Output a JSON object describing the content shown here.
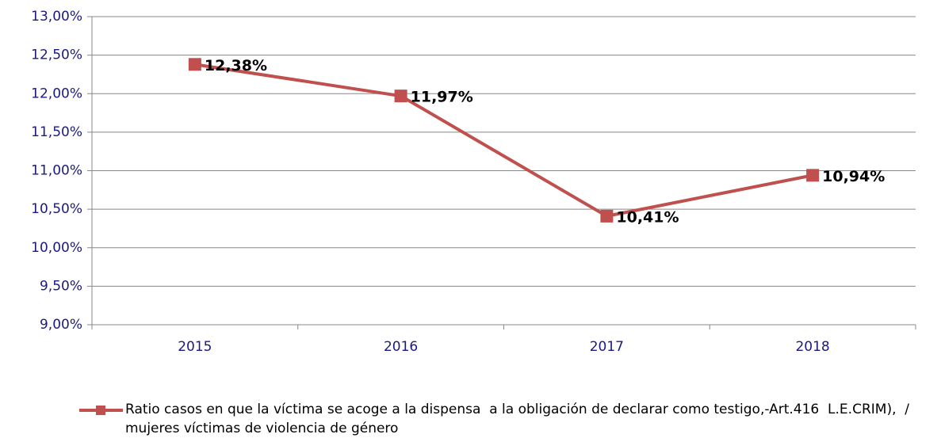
{
  "chart_data": {
    "type": "line",
    "categories": [
      "2015",
      "2016",
      "2017",
      "2018"
    ],
    "series": [
      {
        "name": "Ratio casos en que la víctima se acoge a la dispensa  a la obligación de declarar como testigo,-Art.416  L.E.CRIM),  / mujeres víctimas de violencia de género",
        "color": "#c0504d",
        "values": [
          12.38,
          11.97,
          10.41,
          10.94
        ],
        "value_labels": [
          "12,38%",
          "11,97%",
          "10,41%",
          "10,94%"
        ]
      }
    ],
    "ylim": [
      9,
      13
    ],
    "yticks": [
      {
        "value": 9,
        "label": "9,00%"
      },
      {
        "value": 9.5,
        "label": "9,50%"
      },
      {
        "value": 10,
        "label": "10,00%"
      },
      {
        "value": 10.5,
        "label": "10,50%"
      },
      {
        "value": 11,
        "label": "11,00%"
      },
      {
        "value": 11.5,
        "label": "11,50%"
      },
      {
        "value": 12,
        "label": "12,00%"
      },
      {
        "value": 12.5,
        "label": "12,50%"
      },
      {
        "value": 13,
        "label": "13,00%"
      }
    ],
    "grid": true,
    "legend": "bottom"
  }
}
